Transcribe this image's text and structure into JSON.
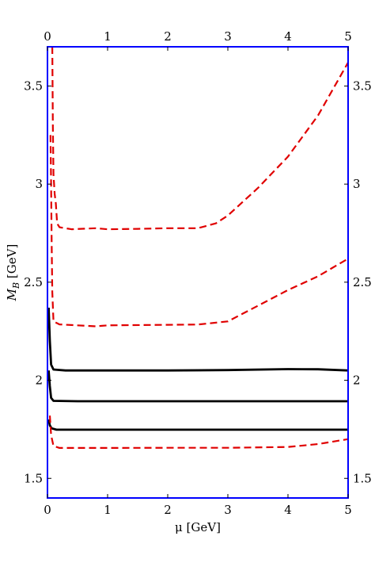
{
  "chart_data": {
    "type": "line",
    "xlabel": "μ [GeV]",
    "ylabel": "M_B [GeV]",
    "xlim": [
      0,
      5
    ],
    "ylim": [
      1.4,
      3.7
    ],
    "x_ticks": [
      0,
      1,
      2,
      3,
      4,
      5
    ],
    "y_ticks": [
      1.5,
      2,
      2.5,
      3,
      3.5
    ],
    "x_tick_labels": [
      "0",
      "1",
      "2",
      "3",
      "4",
      "5"
    ],
    "y_tick_labels": [
      "1.5",
      "2",
      "2.5",
      "3",
      "3.5"
    ],
    "ticks_mirrored": true,
    "grid": false,
    "frame_color": "#0000ff",
    "series": [
      {
        "color": "#000000",
        "dash": "solid",
        "points": [
          [
            0.02,
            2.37
          ],
          [
            0.04,
            2.2
          ],
          [
            0.06,
            2.08
          ],
          [
            0.1,
            2.055
          ],
          [
            0.3,
            2.05
          ],
          [
            1.0,
            2.05
          ],
          [
            2.0,
            2.05
          ],
          [
            3.0,
            2.052
          ],
          [
            4.0,
            2.057
          ],
          [
            4.5,
            2.056
          ],
          [
            5.0,
            2.05
          ]
        ]
      },
      {
        "color": "#000000",
        "dash": "solid",
        "points": [
          [
            0.02,
            2.05
          ],
          [
            0.04,
            1.97
          ],
          [
            0.06,
            1.91
          ],
          [
            0.1,
            1.895
          ],
          [
            0.5,
            1.893
          ],
          [
            1.0,
            1.893
          ],
          [
            2.0,
            1.893
          ],
          [
            3.0,
            1.893
          ],
          [
            4.0,
            1.893
          ],
          [
            5.0,
            1.893
          ]
        ]
      },
      {
        "color": "#000000",
        "dash": "solid",
        "points": [
          [
            0.02,
            1.8
          ],
          [
            0.04,
            1.77
          ],
          [
            0.07,
            1.755
          ],
          [
            0.15,
            1.748
          ],
          [
            1.0,
            1.748
          ],
          [
            2.0,
            1.748
          ],
          [
            3.0,
            1.748
          ],
          [
            4.0,
            1.748
          ],
          [
            5.0,
            1.748
          ]
        ]
      },
      {
        "color": "#e00000",
        "dash": "dashed",
        "points": [
          [
            0.08,
            3.7
          ],
          [
            0.09,
            3.3
          ],
          [
            0.1,
            3.05
          ],
          [
            0.12,
            2.95
          ],
          [
            0.14,
            2.9
          ],
          [
            0.16,
            2.8
          ],
          [
            0.2,
            2.78
          ],
          [
            0.4,
            2.77
          ],
          [
            0.8,
            2.775
          ],
          [
            1.0,
            2.77
          ],
          [
            1.5,
            2.772
          ],
          [
            2.0,
            2.775
          ],
          [
            2.5,
            2.775
          ],
          [
            2.8,
            2.8
          ],
          [
            3.0,
            2.84
          ],
          [
            3.5,
            2.98
          ],
          [
            4.0,
            3.14
          ],
          [
            4.5,
            3.35
          ],
          [
            5.0,
            3.62
          ]
        ]
      },
      {
        "color": "#e00000",
        "dash": "dashed",
        "points": [
          [
            0.05,
            3.25
          ],
          [
            0.06,
            3.0
          ],
          [
            0.07,
            2.7
          ],
          [
            0.08,
            2.45
          ],
          [
            0.1,
            2.3
          ],
          [
            0.2,
            2.285
          ],
          [
            0.5,
            2.28
          ],
          [
            0.8,
            2.275
          ],
          [
            1.0,
            2.28
          ],
          [
            2.0,
            2.283
          ],
          [
            2.5,
            2.284
          ],
          [
            3.0,
            2.3
          ],
          [
            3.5,
            2.38
          ],
          [
            4.0,
            2.46
          ],
          [
            4.5,
            2.53
          ],
          [
            5.0,
            2.62
          ]
        ]
      },
      {
        "color": "#e00000",
        "dash": "dashed",
        "points": [
          [
            0.04,
            1.82
          ],
          [
            0.06,
            1.72
          ],
          [
            0.1,
            1.665
          ],
          [
            0.2,
            1.655
          ],
          [
            1.0,
            1.655
          ],
          [
            2.0,
            1.656
          ],
          [
            3.0,
            1.656
          ],
          [
            4.0,
            1.66
          ],
          [
            4.5,
            1.675
          ],
          [
            5.0,
            1.7
          ]
        ]
      }
    ]
  }
}
